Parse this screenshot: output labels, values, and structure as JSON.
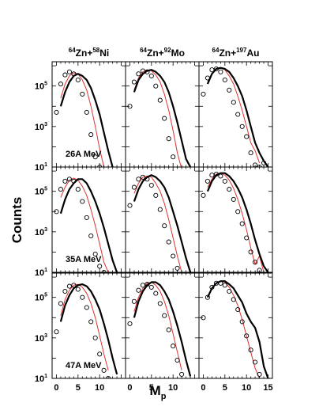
{
  "figure": {
    "ylabel": "Counts",
    "xlabel_main": "M",
    "xlabel_sub": "p"
  },
  "columns": [
    {
      "proj_mass": "64",
      "proj": "Zn+",
      "targ_mass": "58",
      "targ": "Ni"
    },
    {
      "proj_mass": "64",
      "proj": "Zn+",
      "targ_mass": "92",
      "targ": "Mo"
    },
    {
      "proj_mass": "64",
      "proj": "Zn+",
      "targ_mass": "197",
      "targ": "Au"
    }
  ],
  "energies": [
    "26A MeV",
    "35A MeV",
    "47A MeV"
  ],
  "axes": {
    "xlim": [
      -1,
      16
    ],
    "ylog_range": [
      1,
      6.2
    ],
    "x_ticks": [
      0,
      5,
      10,
      15
    ],
    "x_tick_labels": [
      [
        "0",
        "5",
        "10",
        ""
      ],
      [
        "0",
        "5",
        "10",
        ""
      ],
      [
        "0",
        "5",
        "10",
        "15"
      ]
    ],
    "y_ticks": [
      {
        "base": "10",
        "exp": "5",
        "value": 5
      },
      {
        "base": "10",
        "exp": "3",
        "value": 3
      },
      {
        "base": "10",
        "exp": "1",
        "value": 1
      }
    ],
    "y_scale": "log"
  },
  "chart_data": {
    "type": "line",
    "x": [
      0,
      1,
      2,
      3,
      4,
      5,
      6,
      7,
      8,
      9,
      10,
      11,
      12,
      13,
      14,
      15
    ],
    "series_styles": [
      {
        "key": "data",
        "color": "#000000",
        "marker": "open-circle"
      },
      {
        "key": "model_black",
        "color": "#000000",
        "marker": "thick-line"
      },
      {
        "key": "model_red",
        "color": "#e03030",
        "marker": "thin-line"
      }
    ],
    "panels": [
      {
        "row": 0,
        "col": 0,
        "data": [
          3.7,
          5.1,
          5.55,
          5.7,
          5.6,
          5.3,
          4.6,
          3.7,
          2.6,
          1.5,
          1.0,
          0.6,
          null,
          null,
          null,
          null
        ],
        "model_black": [
          null,
          4.0,
          4.7,
          5.2,
          5.5,
          5.6,
          5.5,
          5.3,
          4.9,
          4.3,
          3.6,
          2.7,
          1.8,
          1.0,
          null,
          null
        ],
        "model_red": [
          null,
          4.4,
          5.1,
          5.5,
          5.65,
          5.6,
          5.3,
          4.8,
          4.0,
          3.0,
          1.9,
          1.0,
          null,
          null,
          null,
          null
        ]
      },
      {
        "row": 0,
        "col": 1,
        "data": [
          4.0,
          5.2,
          5.6,
          5.75,
          5.7,
          5.5,
          5.0,
          4.3,
          3.4,
          2.4,
          1.5,
          0.8,
          null,
          null,
          null,
          null
        ],
        "model_black": [
          null,
          4.7,
          5.3,
          5.6,
          5.75,
          5.8,
          5.7,
          5.5,
          5.2,
          4.7,
          4.0,
          3.2,
          2.3,
          1.4,
          1.0,
          null
        ],
        "model_red": [
          null,
          4.8,
          5.4,
          5.7,
          5.8,
          5.75,
          5.55,
          5.2,
          4.6,
          3.8,
          2.8,
          1.7,
          0.9,
          null,
          null,
          null
        ]
      },
      {
        "row": 0,
        "col": 2,
        "data": [
          4.6,
          5.4,
          5.8,
          5.85,
          5.7,
          5.3,
          4.8,
          4.2,
          3.6,
          3.0,
          2.5,
          1.7,
          1.1,
          1.0,
          1.2,
          null
        ],
        "model_black": [
          null,
          5.1,
          5.6,
          5.85,
          5.9,
          5.85,
          5.7,
          5.4,
          5.0,
          4.5,
          3.8,
          3.0,
          2.2,
          1.7,
          1.3,
          1.0
        ],
        "model_red": [
          null,
          5.2,
          5.6,
          5.85,
          5.9,
          5.8,
          5.5,
          5.1,
          4.5,
          3.8,
          3.0,
          2.2,
          1.8,
          1.2,
          null,
          null
        ]
      },
      {
        "row": 1,
        "col": 0,
        "data": [
          4.0,
          5.1,
          5.5,
          5.6,
          5.5,
          5.1,
          4.5,
          3.7,
          2.8,
          1.9,
          1.3,
          1.0,
          null,
          null,
          null,
          null
        ],
        "model_black": [
          null,
          3.9,
          4.6,
          5.1,
          5.4,
          5.6,
          5.6,
          5.4,
          5.0,
          4.5,
          3.9,
          3.2,
          2.4,
          1.6,
          1.0,
          null
        ],
        "model_red": [
          null,
          4.7,
          5.2,
          5.55,
          5.65,
          5.55,
          5.25,
          4.8,
          4.1,
          3.3,
          2.4,
          1.5,
          1.0,
          null,
          null,
          null
        ]
      },
      {
        "row": 1,
        "col": 1,
        "data": [
          4.3,
          5.2,
          5.6,
          5.7,
          5.6,
          5.3,
          4.8,
          4.1,
          3.3,
          2.5,
          1.8,
          1.2,
          null,
          null,
          null,
          null
        ],
        "model_black": [
          null,
          4.5,
          5.1,
          5.5,
          5.7,
          5.8,
          5.7,
          5.5,
          5.2,
          4.7,
          4.0,
          3.3,
          2.5,
          1.7,
          1.0,
          null
        ],
        "model_red": [
          null,
          4.9,
          5.4,
          5.7,
          5.75,
          5.7,
          5.4,
          5.0,
          4.4,
          3.6,
          2.7,
          1.8,
          1.0,
          null,
          null,
          null
        ]
      },
      {
        "row": 1,
        "col": 2,
        "data": [
          4.8,
          5.5,
          5.8,
          5.85,
          5.75,
          5.5,
          5.1,
          4.6,
          4.0,
          3.4,
          2.7,
          2.0,
          1.5,
          1.1,
          null,
          null
        ],
        "model_black": [
          null,
          5.0,
          5.5,
          5.8,
          5.9,
          5.9,
          5.75,
          5.5,
          5.15,
          4.7,
          4.1,
          3.4,
          2.6,
          1.9,
          1.3,
          1.0
        ],
        "model_red": [
          null,
          5.2,
          5.6,
          5.85,
          5.9,
          5.8,
          5.55,
          5.15,
          4.6,
          3.9,
          3.1,
          2.2,
          1.4,
          1.8,
          1.0,
          null
        ]
      },
      {
        "row": 2,
        "col": 0,
        "data": [
          3.3,
          4.7,
          5.3,
          5.55,
          5.6,
          5.4,
          5.0,
          4.5,
          3.8,
          3.0,
          2.2,
          1.4,
          1.0,
          null,
          null,
          null
        ],
        "model_black": [
          null,
          3.8,
          4.6,
          5.1,
          5.45,
          5.6,
          5.65,
          5.55,
          5.3,
          4.9,
          4.4,
          3.7,
          2.9,
          2.0,
          1.2,
          null
        ],
        "model_red": [
          null,
          4.1,
          4.9,
          5.35,
          5.6,
          5.65,
          5.5,
          5.2,
          4.7,
          4.0,
          3.1,
          2.2,
          1.4,
          null,
          null,
          null
        ]
      },
      {
        "row": 2,
        "col": 1,
        "data": [
          3.7,
          4.8,
          5.35,
          5.6,
          5.65,
          5.5,
          5.2,
          4.7,
          4.1,
          3.4,
          2.6,
          1.9,
          1.2,
          null,
          null,
          null
        ],
        "model_black": [
          null,
          4.0,
          4.8,
          5.3,
          5.6,
          5.75,
          5.75,
          5.6,
          5.3,
          4.9,
          4.3,
          3.6,
          2.8,
          1.9,
          1.1,
          null
        ],
        "model_red": [
          null,
          4.3,
          5.0,
          5.45,
          5.7,
          5.75,
          5.6,
          5.3,
          4.8,
          4.1,
          3.2,
          2.3,
          1.4,
          null,
          null,
          null
        ]
      },
      {
        "row": 2,
        "col": 2,
        "data": [
          4.0,
          5.0,
          5.5,
          5.7,
          5.7,
          5.6,
          5.3,
          4.9,
          4.4,
          3.8,
          3.1,
          2.4,
          1.8,
          1.2,
          null,
          null
        ],
        "model_black": [
          null,
          5.0,
          5.45,
          5.7,
          5.8,
          5.8,
          5.65,
          5.45,
          5.1,
          4.75,
          4.2,
          3.8,
          3.5,
          2.8,
          1.6,
          1.0
        ],
        "model_red": [
          null,
          5.0,
          5.45,
          5.7,
          5.8,
          5.75,
          5.5,
          5.1,
          4.6,
          3.9,
          3.1,
          2.3,
          1.5,
          1.0,
          null,
          null
        ]
      }
    ]
  }
}
